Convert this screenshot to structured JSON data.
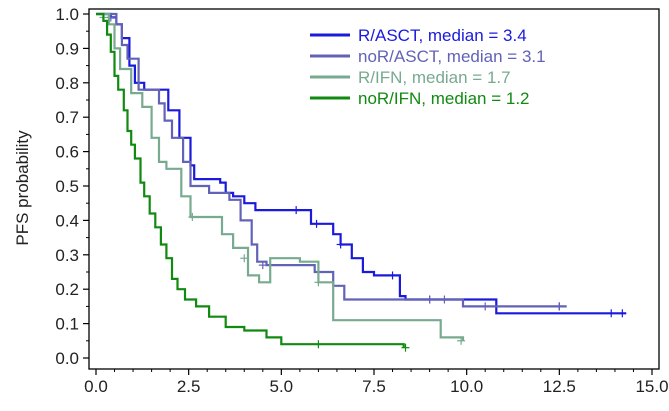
{
  "chart_data": {
    "type": "line",
    "title": "",
    "xlabel": "",
    "ylabel": "PFS probability",
    "xlim": [
      0,
      15
    ],
    "ylim": [
      0,
      1
    ],
    "x_ticks": [
      "0.0",
      "2.5",
      "5.0",
      "7.5",
      "10.0",
      "12.5",
      "15.0"
    ],
    "y_ticks": [
      "0.0",
      "0.1",
      "0.2",
      "0.3",
      "0.4",
      "0.5",
      "0.6",
      "0.7",
      "0.8",
      "0.9",
      "1.0"
    ],
    "grid": false,
    "legend_position": "top-right",
    "series": [
      {
        "name": "R/ASCT, median = 3.4",
        "color": "#1a1adc",
        "points": [
          [
            0,
            1.0
          ],
          [
            0.4,
            0.99
          ],
          [
            0.55,
            0.97
          ],
          [
            0.7,
            0.93
          ],
          [
            0.9,
            0.85
          ],
          [
            1.05,
            0.8
          ],
          [
            1.3,
            0.78
          ],
          [
            1.75,
            0.78
          ],
          [
            1.95,
            0.72
          ],
          [
            2.25,
            0.64
          ],
          [
            2.55,
            0.56
          ],
          [
            2.65,
            0.52
          ],
          [
            3.35,
            0.51
          ],
          [
            3.5,
            0.48
          ],
          [
            3.7,
            0.47
          ],
          [
            4.0,
            0.45
          ],
          [
            4.3,
            0.43
          ],
          [
            5.8,
            0.39
          ],
          [
            6.4,
            0.36
          ],
          [
            6.6,
            0.33
          ],
          [
            6.9,
            0.29
          ],
          [
            7.2,
            0.25
          ],
          [
            7.5,
            0.24
          ],
          [
            8.2,
            0.18
          ],
          [
            8.35,
            0.17
          ],
          [
            10.8,
            0.13
          ],
          [
            14.3,
            0.13
          ]
        ],
        "censors": [
          [
            5.4,
            0.43
          ],
          [
            5.95,
            0.39
          ],
          [
            6.6,
            0.33
          ],
          [
            8.0,
            0.24
          ],
          [
            9.0,
            0.17
          ],
          [
            12.5,
            0.15
          ],
          [
            13.9,
            0.13
          ],
          [
            14.2,
            0.13
          ]
        ]
      },
      {
        "name": "noR/ASCT, median = 3.1",
        "color": "#6262b6",
        "points": [
          [
            0,
            1.0
          ],
          [
            0.55,
            0.97
          ],
          [
            0.7,
            0.91
          ],
          [
            0.85,
            0.87
          ],
          [
            1.15,
            0.78
          ],
          [
            1.6,
            0.78
          ],
          [
            1.7,
            0.74
          ],
          [
            1.85,
            0.69
          ],
          [
            2.05,
            0.64
          ],
          [
            2.35,
            0.57
          ],
          [
            2.55,
            0.5
          ],
          [
            3.05,
            0.48
          ],
          [
            3.6,
            0.46
          ],
          [
            3.9,
            0.4
          ],
          [
            4.2,
            0.33
          ],
          [
            4.35,
            0.28
          ],
          [
            4.6,
            0.27
          ],
          [
            5.9,
            0.25
          ],
          [
            6.4,
            0.21
          ],
          [
            6.7,
            0.17
          ],
          [
            8.35,
            0.17
          ],
          [
            9.9,
            0.15
          ],
          [
            12.7,
            0.15
          ]
        ],
        "censors": [
          [
            0.4,
            0.99
          ],
          [
            4.5,
            0.27
          ],
          [
            9.0,
            0.17
          ],
          [
            9.4,
            0.17
          ],
          [
            10.5,
            0.15
          ],
          [
            12.5,
            0.15
          ]
        ]
      },
      {
        "name": "R/IFN, median = 1.7",
        "color": "#78aa90",
        "points": [
          [
            0,
            1.0
          ],
          [
            0.35,
            0.97
          ],
          [
            0.5,
            0.9
          ],
          [
            0.65,
            0.84
          ],
          [
            0.95,
            0.77
          ],
          [
            1.25,
            0.73
          ],
          [
            1.5,
            0.64
          ],
          [
            1.7,
            0.57
          ],
          [
            1.9,
            0.55
          ],
          [
            2.3,
            0.47
          ],
          [
            2.55,
            0.41
          ],
          [
            3.4,
            0.36
          ],
          [
            3.7,
            0.32
          ],
          [
            4.1,
            0.24
          ],
          [
            4.4,
            0.22
          ],
          [
            4.7,
            0.29
          ],
          [
            5.5,
            0.28
          ],
          [
            6.0,
            0.22
          ],
          [
            6.4,
            0.11
          ],
          [
            9.3,
            0.06
          ],
          [
            9.9,
            0.05
          ]
        ],
        "censors": [
          [
            0.2,
            0.99
          ],
          [
            2.6,
            0.41
          ],
          [
            4.0,
            0.29
          ],
          [
            6.0,
            0.22
          ],
          [
            9.85,
            0.05
          ]
        ]
      },
      {
        "name": "noR/IFN, median = 1.2",
        "color": "#118a11",
        "points": [
          [
            0,
            1.0
          ],
          [
            0.2,
            0.98
          ],
          [
            0.3,
            0.94
          ],
          [
            0.4,
            0.89
          ],
          [
            0.5,
            0.82
          ],
          [
            0.6,
            0.78
          ],
          [
            0.75,
            0.72
          ],
          [
            0.85,
            0.66
          ],
          [
            0.95,
            0.62
          ],
          [
            1.05,
            0.58
          ],
          [
            1.2,
            0.51
          ],
          [
            1.3,
            0.47
          ],
          [
            1.45,
            0.42
          ],
          [
            1.6,
            0.38
          ],
          [
            1.75,
            0.33
          ],
          [
            1.9,
            0.29
          ],
          [
            2.05,
            0.23
          ],
          [
            2.2,
            0.2
          ],
          [
            2.4,
            0.17
          ],
          [
            2.7,
            0.15
          ],
          [
            3.05,
            0.12
          ],
          [
            3.5,
            0.09
          ],
          [
            4.0,
            0.08
          ],
          [
            4.6,
            0.06
          ],
          [
            5.0,
            0.04
          ],
          [
            6.0,
            0.04
          ],
          [
            8.3,
            0.03
          ]
        ],
        "censors": [
          [
            6.0,
            0.04
          ],
          [
            8.35,
            0.03
          ]
        ]
      }
    ]
  }
}
